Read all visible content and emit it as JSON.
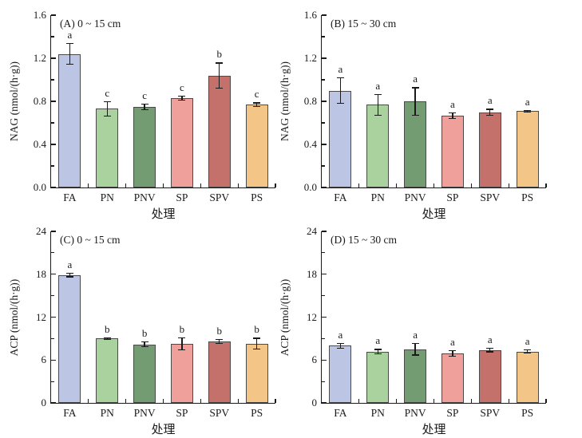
{
  "figure": {
    "background_color": "#ffffff",
    "text_color": "#1a1a1a"
  },
  "chart_data": {
    "type": "bar",
    "categories": [
      "FA",
      "PN",
      "PNV",
      "SP",
      "SPV",
      "PS"
    ],
    "xlabel": "处理",
    "bar_colors": [
      "#bcc5e4",
      "#a9d29e",
      "#739c72",
      "#efa09b",
      "#c4716b",
      "#f3c688"
    ],
    "bar_border_color": "#4a4a4a",
    "axis_color": "#1a1a1a",
    "error_bar_color": "#1a1a1a",
    "grid": "off",
    "legend": "none",
    "panels": [
      {
        "id": "A",
        "title": "(A) 0 ~ 15 cm",
        "ylabel": "NAG (nmol/(h·g))",
        "ylim": [
          0,
          1.6
        ],
        "yticks": [
          0,
          0.4,
          0.8,
          1.2,
          1.6
        ],
        "ytick_labels": [
          "0.0",
          "0.4",
          "0.8",
          "1.2",
          "1.6"
        ],
        "minor_ticks": [
          0.2,
          0.6,
          1.0,
          1.4
        ],
        "values": [
          1.24,
          0.73,
          0.75,
          0.83,
          1.04,
          0.77
        ],
        "errors": [
          0.1,
          0.07,
          0.03,
          0.02,
          0.12,
          0.02
        ],
        "letters": [
          "a",
          "c",
          "c",
          "c",
          "b",
          "c"
        ]
      },
      {
        "id": "B",
        "title": "(B) 15 ~ 30 cm",
        "ylabel": "NAG (nmol/(h·g))",
        "ylim": [
          0,
          1.6
        ],
        "yticks": [
          0,
          0.4,
          0.8,
          1.2,
          1.6
        ],
        "ytick_labels": [
          "0.0",
          "0.4",
          "0.8",
          "1.2",
          "1.6"
        ],
        "minor_ticks": [
          0.2,
          0.6,
          1.0,
          1.4
        ],
        "values": [
          0.9,
          0.77,
          0.8,
          0.67,
          0.7,
          0.71
        ],
        "errors": [
          0.12,
          0.1,
          0.13,
          0.03,
          0.03,
          0.01
        ],
        "letters": [
          "a",
          "a",
          "a",
          "a",
          "a",
          "a"
        ]
      },
      {
        "id": "C",
        "title": "(C) 0 ~ 15 cm",
        "ylabel": "ACP (nmol/(h·g))",
        "ylim": [
          0,
          24
        ],
        "yticks": [
          0,
          6,
          12,
          18,
          24
        ],
        "ytick_labels": [
          "0",
          "6",
          "12",
          "18",
          "24"
        ],
        "minor_ticks": [
          3,
          9,
          15,
          21
        ],
        "values": [
          17.9,
          9.0,
          8.2,
          8.3,
          8.6,
          8.3
        ],
        "errors": [
          0.3,
          0.2,
          0.4,
          0.9,
          0.3,
          0.8
        ],
        "letters": [
          "a",
          "b",
          "b",
          "b",
          "b",
          "b"
        ]
      },
      {
        "id": "D",
        "title": "(D) 15 ~ 30 cm",
        "ylabel": "ACP (nmol/(h·g))",
        "ylim": [
          0,
          24
        ],
        "yticks": [
          0,
          6,
          12,
          18,
          24
        ],
        "ytick_labels": [
          "0",
          "6",
          "12",
          "18",
          "24"
        ],
        "minor_ticks": [
          3,
          9,
          15,
          21
        ],
        "values": [
          8.0,
          7.2,
          7.5,
          6.9,
          7.4,
          7.2
        ],
        "errors": [
          0.4,
          0.35,
          0.85,
          0.45,
          0.3,
          0.3
        ],
        "letters": [
          "a",
          "a",
          "a",
          "a",
          "a",
          "a"
        ]
      }
    ]
  }
}
